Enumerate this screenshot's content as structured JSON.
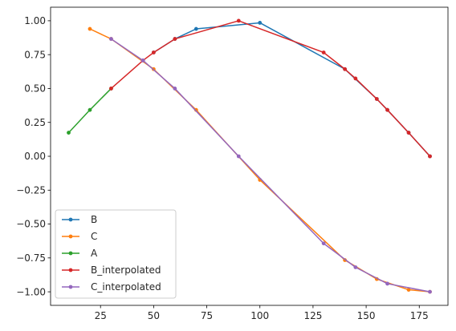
{
  "chart_data": {
    "type": "line",
    "title": "",
    "xlabel": "",
    "ylabel": "",
    "xlim": [
      1.5,
      188.5
    ],
    "ylim": [
      -1.1,
      1.1
    ],
    "xticks": [
      25,
      50,
      75,
      100,
      125,
      150,
      175
    ],
    "yticks": [
      -1.0,
      -0.75,
      -0.5,
      -0.25,
      0.0,
      0.25,
      0.5,
      0.75,
      1.0
    ],
    "xtick_labels": [
      "25",
      "50",
      "75",
      "100",
      "125",
      "150",
      "175"
    ],
    "ytick_labels": [
      "−1.00",
      "−0.75",
      "−0.50",
      "−0.25",
      "0.00",
      "0.25",
      "0.50",
      "0.75",
      "1.00"
    ],
    "grid": false,
    "legend_position": "lower-left",
    "series": [
      {
        "name": "B",
        "color": "#1f77b4",
        "x": [
          50,
          60,
          70,
          100,
          140,
          155,
          160,
          170,
          180
        ],
        "y": [
          0.766,
          0.866,
          0.94,
          0.985,
          0.643,
          0.423,
          0.342,
          0.174,
          0.0
        ]
      },
      {
        "name": "C",
        "color": "#ff7f0e",
        "x": [
          20,
          30,
          50,
          70,
          100,
          140,
          155,
          170,
          180
        ],
        "y": [
          0.94,
          0.866,
          0.643,
          0.342,
          -0.174,
          -0.766,
          -0.906,
          -0.985,
          -1.0
        ]
      },
      {
        "name": "A",
        "color": "#2ca02c",
        "x": [
          10,
          20,
          30
        ],
        "y": [
          0.174,
          0.342,
          0.5
        ]
      },
      {
        "name": "B_interpolated",
        "color": "#d62728",
        "x": [
          30,
          45,
          50,
          60,
          90,
          130,
          140,
          145,
          155,
          160,
          170,
          180
        ],
        "y": [
          0.5,
          0.707,
          0.766,
          0.866,
          1.0,
          0.766,
          0.643,
          0.574,
          0.423,
          0.342,
          0.174,
          0.0
        ]
      },
      {
        "name": "C_interpolated",
        "color": "#9467bd",
        "x": [
          30,
          45,
          60,
          90,
          130,
          145,
          160,
          180
        ],
        "y": [
          0.866,
          0.707,
          0.5,
          0.0,
          -0.643,
          -0.819,
          -0.94,
          -1.0
        ]
      }
    ]
  }
}
